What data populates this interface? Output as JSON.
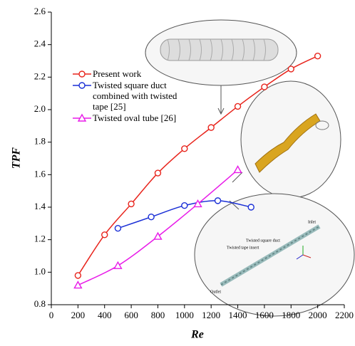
{
  "chart_data": {
    "type": "line",
    "xlabel": "Re",
    "ylabel": "TPF",
    "xlim": [
      0,
      2200
    ],
    "xticks": [
      0,
      200,
      400,
      600,
      800,
      1000,
      1200,
      1400,
      1600,
      1800,
      2000,
      2200
    ],
    "ylim": [
      0.8,
      2.6
    ],
    "yticks": [
      0.8,
      {
        "value": 1.0,
        "label": "1.0"
      },
      1.2,
      1.4,
      1.6,
      1.8,
      {
        "value": 2.0,
        "label": "2.0"
      },
      2.2,
      2.4,
      2.6
    ],
    "legend": "upper left",
    "series": [
      {
        "name": "Present work",
        "color": "#e8241c",
        "marker": "circle",
        "x": [
          200,
          400,
          600,
          800,
          1000,
          1200,
          1400,
          1600,
          1800,
          2000
        ],
        "values": [
          0.98,
          1.23,
          1.42,
          1.61,
          1.76,
          1.89,
          2.02,
          2.14,
          2.25,
          2.33
        ]
      },
      {
        "name": "Twisted square duct combined with twisted tape [25]",
        "color": "#1a2fd6",
        "marker": "circle",
        "x": [
          500,
          750,
          1000,
          1250,
          1500
        ],
        "values": [
          1.27,
          1.34,
          1.41,
          1.44,
          1.4
        ]
      },
      {
        "name": "Twisted oval tube [26]",
        "color": "#e81ce8",
        "marker": "triangle",
        "x": [
          200,
          500,
          800,
          1100,
          1400
        ],
        "values": [
          0.92,
          1.04,
          1.22,
          1.42,
          1.63
        ]
      }
    ],
    "annotations": [
      "Twisted square duct",
      "Twisted tape insert",
      "Inlet",
      "Outlet"
    ]
  }
}
